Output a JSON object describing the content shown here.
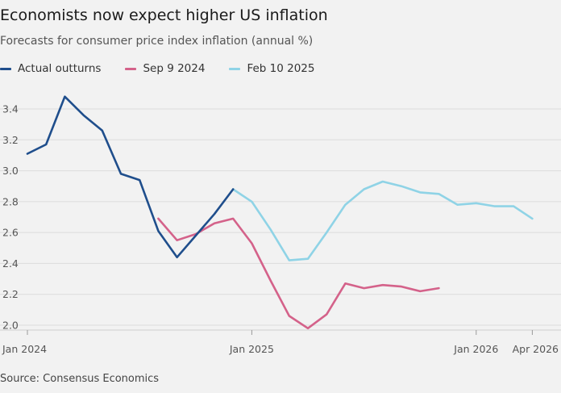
{
  "chart_data": {
    "type": "line",
    "title": "Economists now expect higher US inflation",
    "subtitle": "Forecasts for consumer price index inflation (annual %)",
    "source": "Source: Consensus Economics",
    "xlabel": "",
    "ylabel": "",
    "ylim": [
      2.0,
      3.4
    ],
    "yticks": [
      2.0,
      2.2,
      2.4,
      2.6,
      2.8,
      3.0,
      3.2,
      3.4
    ],
    "x_range": [
      "2024-01",
      "2026-05"
    ],
    "xticks": [
      {
        "label": "Jan 2024",
        "date": "2024-01"
      },
      {
        "label": "Jan 2025",
        "date": "2025-01"
      },
      {
        "label": "Jan 2026",
        "date": "2026-01"
      },
      {
        "label": "Apr 2026",
        "date": "2026-04"
      }
    ],
    "grid": "horizontal",
    "legend_position": "top-left",
    "series": [
      {
        "name": "Actual outturns",
        "color": "#1f4e8c",
        "points": [
          {
            "x": "2024-01",
            "y": 3.11
          },
          {
            "x": "2024-02",
            "y": 3.17
          },
          {
            "x": "2024-03",
            "y": 3.48
          },
          {
            "x": "2024-04",
            "y": 3.36
          },
          {
            "x": "2024-05",
            "y": 3.26
          },
          {
            "x": "2024-06",
            "y": 2.98
          },
          {
            "x": "2024-07",
            "y": 2.94
          },
          {
            "x": "2024-08",
            "y": 2.61
          },
          {
            "x": "2024-09",
            "y": 2.44
          },
          {
            "x": "2024-10",
            "y": 2.58
          },
          {
            "x": "2024-11",
            "y": 2.72
          },
          {
            "x": "2024-12",
            "y": 2.88
          }
        ]
      },
      {
        "name": "Sep 9 2024",
        "color": "#d4628a",
        "points": [
          {
            "x": "2024-08",
            "y": 2.69
          },
          {
            "x": "2024-09",
            "y": 2.55
          },
          {
            "x": "2024-10",
            "y": 2.59
          },
          {
            "x": "2024-11",
            "y": 2.66
          },
          {
            "x": "2024-12",
            "y": 2.69
          },
          {
            "x": "2025-01",
            "y": 2.53
          },
          {
            "x": "2025-02",
            "y": 2.29
          },
          {
            "x": "2025-03",
            "y": 2.06
          },
          {
            "x": "2025-04",
            "y": 1.98
          },
          {
            "x": "2025-05",
            "y": 2.07
          },
          {
            "x": "2025-06",
            "y": 2.27
          },
          {
            "x": "2025-07",
            "y": 2.24
          },
          {
            "x": "2025-08",
            "y": 2.26
          },
          {
            "x": "2025-09",
            "y": 2.25
          },
          {
            "x": "2025-10",
            "y": 2.22
          },
          {
            "x": "2025-11",
            "y": 2.24
          }
        ]
      },
      {
        "name": "Feb 10 2025",
        "color": "#8fd3e6",
        "points": [
          {
            "x": "2024-12",
            "y": 2.88
          },
          {
            "x": "2025-01",
            "y": 2.8
          },
          {
            "x": "2025-02",
            "y": 2.62
          },
          {
            "x": "2025-03",
            "y": 2.42
          },
          {
            "x": "2025-04",
            "y": 2.43
          },
          {
            "x": "2025-05",
            "y": 2.6
          },
          {
            "x": "2025-06",
            "y": 2.78
          },
          {
            "x": "2025-07",
            "y": 2.88
          },
          {
            "x": "2025-08",
            "y": 2.93
          },
          {
            "x": "2025-09",
            "y": 2.9
          },
          {
            "x": "2025-10",
            "y": 2.86
          },
          {
            "x": "2025-11",
            "y": 2.85
          },
          {
            "x": "2025-12",
            "y": 2.78
          },
          {
            "x": "2026-01",
            "y": 2.79
          },
          {
            "x": "2026-02",
            "y": 2.77
          },
          {
            "x": "2026-03",
            "y": 2.77
          },
          {
            "x": "2026-04",
            "y": 2.69
          }
        ]
      }
    ]
  }
}
